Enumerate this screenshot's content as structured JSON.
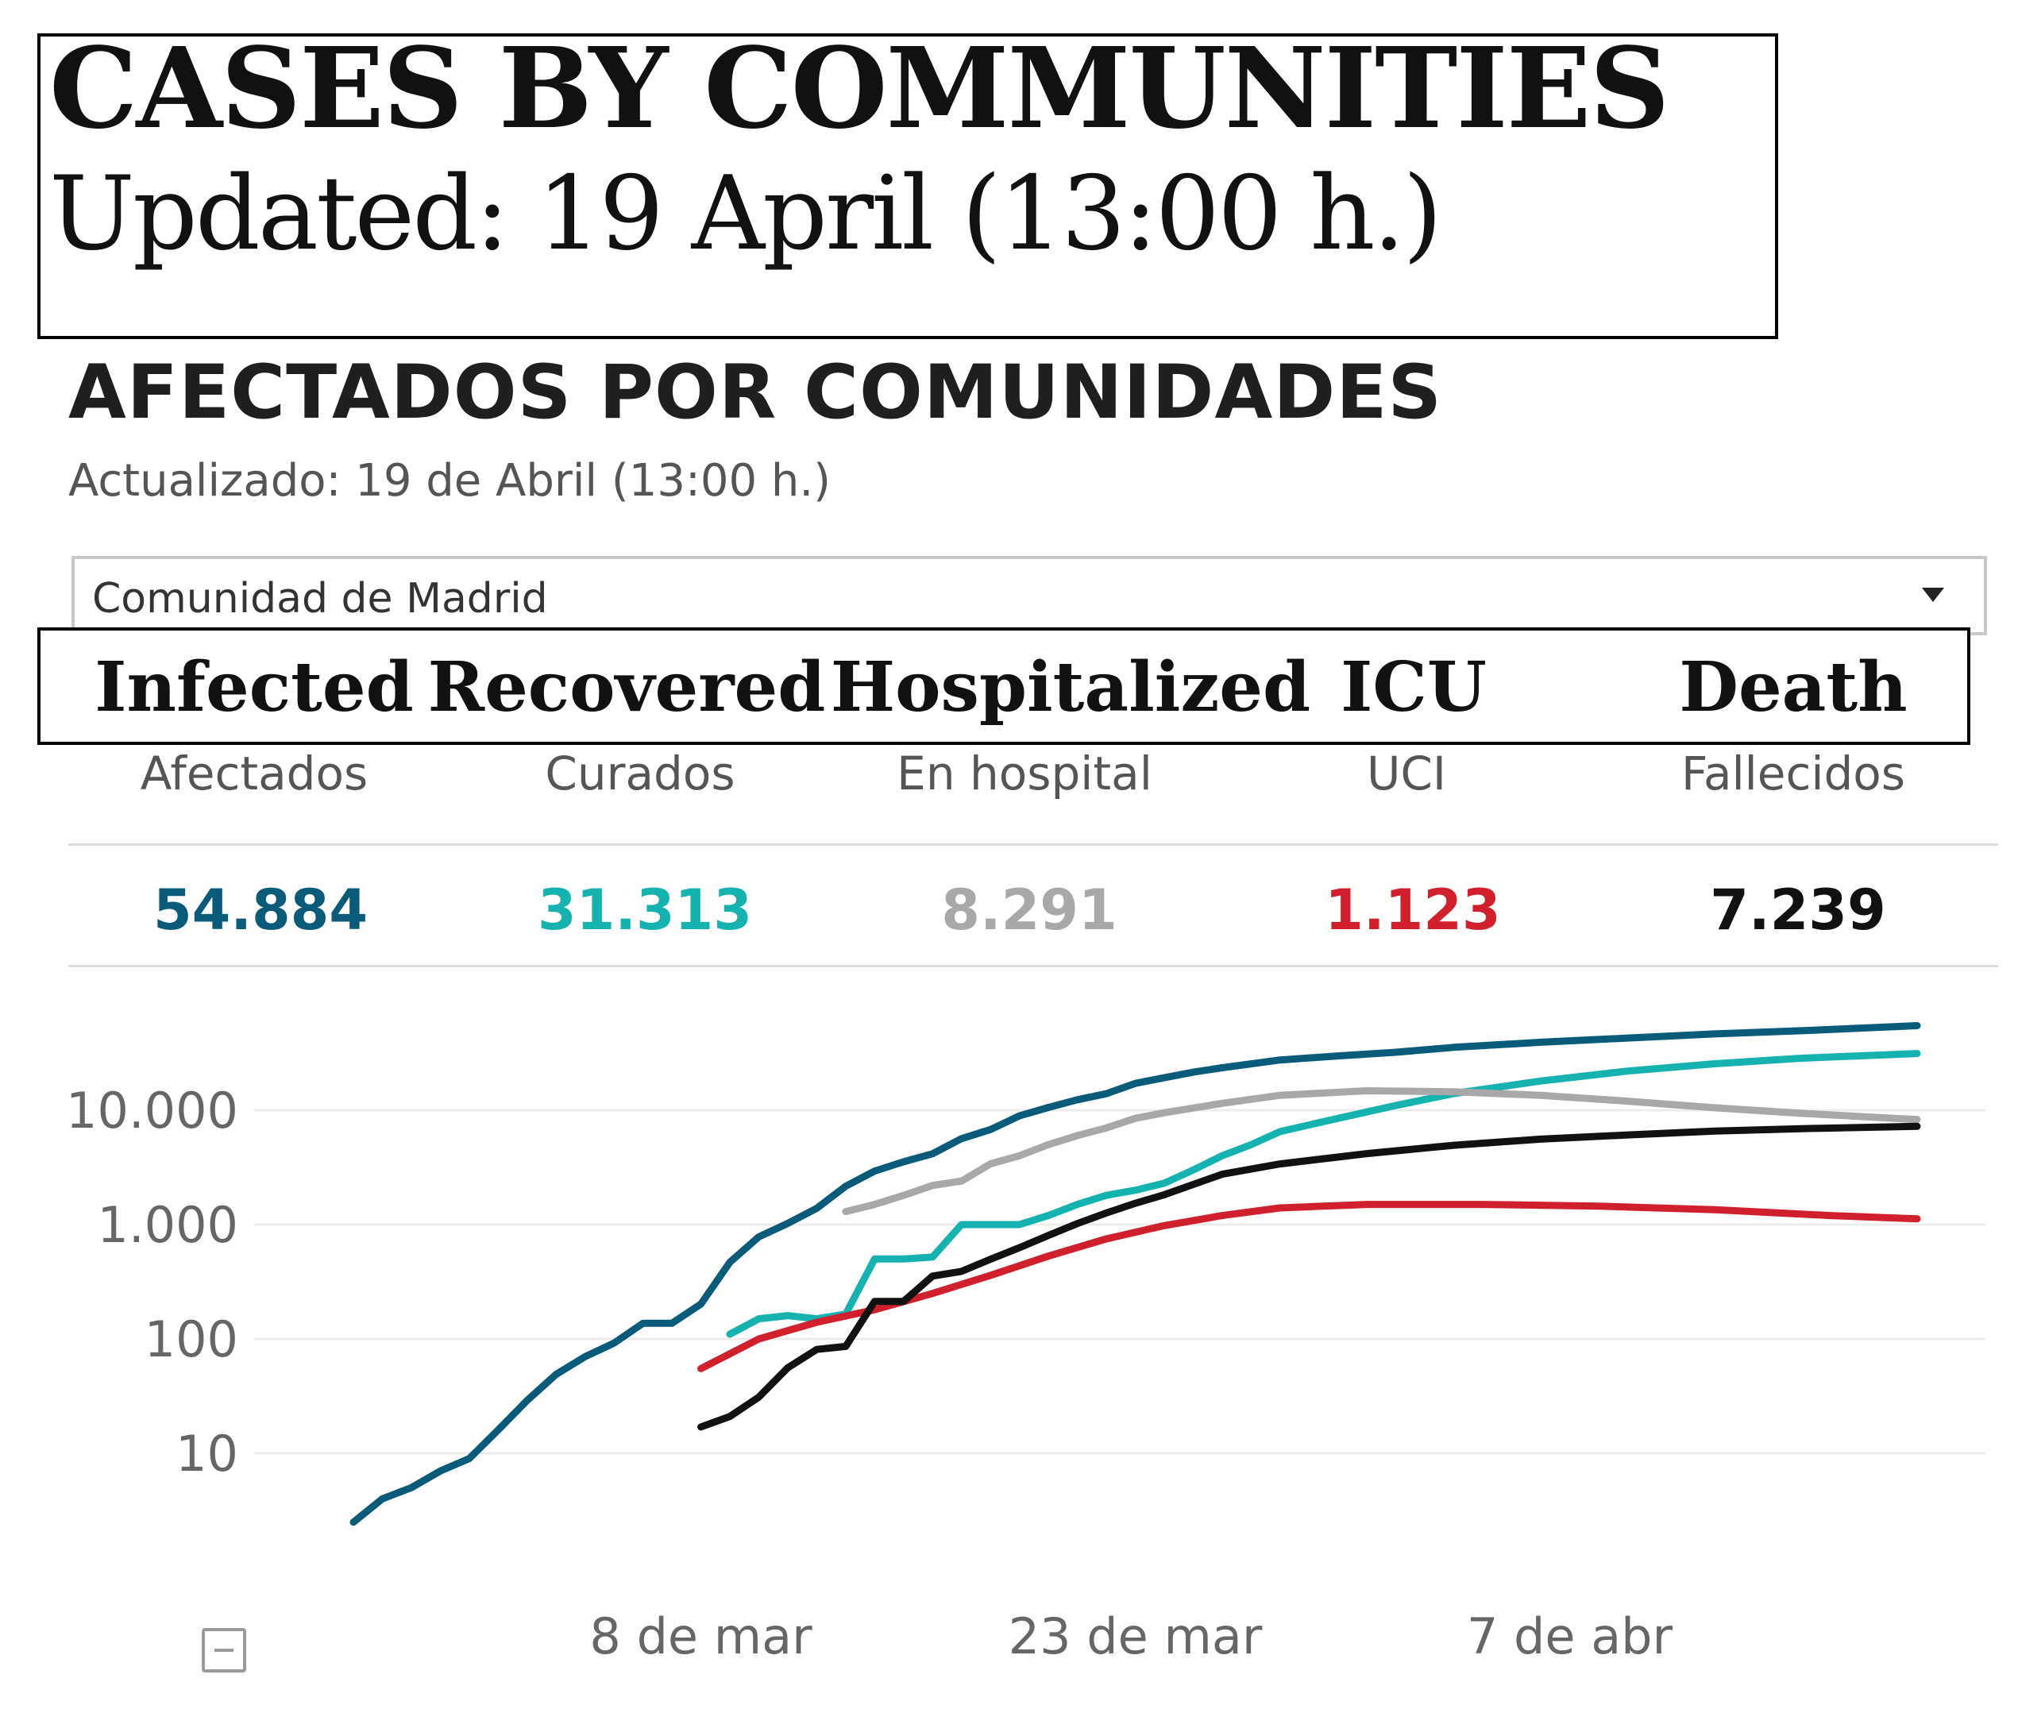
{
  "annotation": {
    "title": "CASES BY COMMUNITIES",
    "updated": "Updated: 19 April (13:00 h.)"
  },
  "header": {
    "title": "AFECTADOS POR COMUNIDADES",
    "updated": "Actualizado: 19 de Abril (13:00 h.)"
  },
  "selector": {
    "value": "Comunidad de Madrid"
  },
  "metrics": [
    {
      "en": "Infected",
      "es": "Afectados",
      "value": "54.884",
      "color": "#0a5a7a"
    },
    {
      "en": "Recovered",
      "es": "Curados",
      "value": "31.313",
      "color": "#16b2b0"
    },
    {
      "en": "Hospitalized",
      "es": "En hospital",
      "value": "8.291",
      "color": "#a8a8a8"
    },
    {
      "en": "ICU",
      "es": "UCI",
      "value": "1.123",
      "color": "#d0202e"
    },
    {
      "en": "Death",
      "es": "Fallecidos",
      "value": "7.239",
      "color": "#111111"
    }
  ],
  "chart_data": {
    "type": "line",
    "yscale": "log",
    "ylim": [
      2,
      70000
    ],
    "xlim": [
      "2020-02-25",
      "2020-04-19"
    ],
    "y_ticks": [
      {
        "value": 10,
        "label": "10"
      },
      {
        "value": 100,
        "label": "100"
      },
      {
        "value": 1000,
        "label": "1.000"
      },
      {
        "value": 10000,
        "label": "10.000"
      }
    ],
    "x_ticks": [
      {
        "date": "2020-03-08",
        "label": "8 de mar"
      },
      {
        "date": "2020-03-23",
        "label": "23 de mar"
      },
      {
        "date": "2020-04-07",
        "label": "7 de abr"
      }
    ],
    "grid": true,
    "legend": "none",
    "series": [
      {
        "color": "#0a5a7a",
        "points": [
          [
            "2020-02-25",
            2.5
          ],
          [
            "2020-02-26",
            4
          ],
          [
            "2020-02-27",
            5
          ],
          [
            "2020-02-28",
            7
          ],
          [
            "2020-02-29",
            9
          ],
          [
            "2020-03-01",
            16
          ],
          [
            "2020-03-02",
            29
          ],
          [
            "2020-03-03",
            49
          ],
          [
            "2020-03-04",
            70
          ],
          [
            "2020-03-05",
            92
          ],
          [
            "2020-03-06",
            137
          ],
          [
            "2020-03-07",
            137
          ],
          [
            "2020-03-08",
            202
          ],
          [
            "2020-03-09",
            469
          ],
          [
            "2020-03-10",
            782
          ],
          [
            "2020-03-11",
            1024
          ],
          [
            "2020-03-12",
            1388
          ],
          [
            "2020-03-13",
            2165
          ],
          [
            "2020-03-14",
            2940
          ],
          [
            "2020-03-15",
            3544
          ],
          [
            "2020-03-16",
            4165
          ],
          [
            "2020-03-17",
            5637
          ],
          [
            "2020-03-18",
            6777
          ],
          [
            "2020-03-19",
            8921
          ],
          [
            "2020-03-20",
            10575
          ],
          [
            "2020-03-21",
            12352
          ],
          [
            "2020-03-22",
            13941
          ],
          [
            "2020-03-23",
            17166
          ],
          [
            "2020-03-24",
            19243
          ],
          [
            "2020-03-25",
            21520
          ],
          [
            "2020-03-26",
            23543
          ],
          [
            "2020-03-28",
            27509
          ],
          [
            "2020-03-30",
            29840
          ],
          [
            "2020-04-01",
            32155
          ],
          [
            "2020-04-03",
            35501
          ],
          [
            "2020-04-06",
            39315
          ],
          [
            "2020-04-09",
            42800
          ],
          [
            "2020-04-12",
            46500
          ],
          [
            "2020-04-15",
            49600
          ],
          [
            "2020-04-19",
            54884
          ]
        ]
      },
      {
        "color": "#16b2b0",
        "points": [
          [
            "2020-03-09",
            110
          ],
          [
            "2020-03-10",
            150
          ],
          [
            "2020-03-11",
            160
          ],
          [
            "2020-03-12",
            150
          ],
          [
            "2020-03-13",
            165
          ],
          [
            "2020-03-14",
            500
          ],
          [
            "2020-03-15",
            500
          ],
          [
            "2020-03-16",
            520
          ],
          [
            "2020-03-17",
            1000
          ],
          [
            "2020-03-18",
            1000
          ],
          [
            "2020-03-19",
            1000
          ],
          [
            "2020-03-20",
            1200
          ],
          [
            "2020-03-21",
            1500
          ],
          [
            "2020-03-22",
            1800
          ],
          [
            "2020-03-23",
            2000
          ],
          [
            "2020-03-24",
            2300
          ],
          [
            "2020-03-25",
            3000
          ],
          [
            "2020-03-26",
            4000
          ],
          [
            "2020-03-27",
            5000
          ],
          [
            "2020-03-28",
            6500
          ],
          [
            "2020-03-30",
            8500
          ],
          [
            "2020-04-01",
            11000
          ],
          [
            "2020-04-03",
            14000
          ],
          [
            "2020-04-06",
            18000
          ],
          [
            "2020-04-09",
            22000
          ],
          [
            "2020-04-12",
            25500
          ],
          [
            "2020-04-15",
            28500
          ],
          [
            "2020-04-19",
            31313
          ]
        ]
      },
      {
        "color": "#a8a8a8",
        "points": [
          [
            "2020-03-13",
            1300
          ],
          [
            "2020-03-14",
            1500
          ],
          [
            "2020-03-15",
            1800
          ],
          [
            "2020-03-16",
            2200
          ],
          [
            "2020-03-17",
            2400
          ],
          [
            "2020-03-18",
            3400
          ],
          [
            "2020-03-19",
            4000
          ],
          [
            "2020-03-20",
            5000
          ],
          [
            "2020-03-21",
            6000
          ],
          [
            "2020-03-22",
            7000
          ],
          [
            "2020-03-23",
            8500
          ],
          [
            "2020-03-24",
            9500
          ],
          [
            "2020-03-26",
            11500
          ],
          [
            "2020-03-28",
            13500
          ],
          [
            "2020-03-31",
            14800
          ],
          [
            "2020-04-03",
            14500
          ],
          [
            "2020-04-06",
            13500
          ],
          [
            "2020-04-09",
            12000
          ],
          [
            "2020-04-12",
            10500
          ],
          [
            "2020-04-15",
            9400
          ],
          [
            "2020-04-19",
            8291
          ]
        ]
      },
      {
        "color": "#d0202e",
        "points": [
          [
            "2020-03-08",
            55
          ],
          [
            "2020-03-10",
            100
          ],
          [
            "2020-03-12",
            140
          ],
          [
            "2020-03-14",
            180
          ],
          [
            "2020-03-16",
            250
          ],
          [
            "2020-03-18",
            360
          ],
          [
            "2020-03-20",
            530
          ],
          [
            "2020-03-22",
            750
          ],
          [
            "2020-03-24",
            980
          ],
          [
            "2020-03-26",
            1200
          ],
          [
            "2020-03-28",
            1400
          ],
          [
            "2020-03-31",
            1500
          ],
          [
            "2020-04-04",
            1500
          ],
          [
            "2020-04-08",
            1450
          ],
          [
            "2020-04-12",
            1350
          ],
          [
            "2020-04-16",
            1200
          ],
          [
            "2020-04-19",
            1123
          ]
        ]
      },
      {
        "color": "#111111",
        "points": [
          [
            "2020-03-08",
            17
          ],
          [
            "2020-03-09",
            21
          ],
          [
            "2020-03-10",
            31
          ],
          [
            "2020-03-11",
            56
          ],
          [
            "2020-03-12",
            81
          ],
          [
            "2020-03-13",
            86
          ],
          [
            "2020-03-14",
            213
          ],
          [
            "2020-03-15",
            213
          ],
          [
            "2020-03-16",
            355
          ],
          [
            "2020-03-17",
            390
          ],
          [
            "2020-03-18",
            498
          ],
          [
            "2020-03-19",
            628
          ],
          [
            "2020-03-20",
            804
          ],
          [
            "2020-03-21",
            1021
          ],
          [
            "2020-03-22",
            1263
          ],
          [
            "2020-03-23",
            1535
          ],
          [
            "2020-03-24",
            1825
          ],
          [
            "2020-03-26",
            2757
          ],
          [
            "2020-03-28",
            3392
          ],
          [
            "2020-03-31",
            4175
          ],
          [
            "2020-04-03",
            4941
          ],
          [
            "2020-04-06",
            5586
          ],
          [
            "2020-04-09",
            6084
          ],
          [
            "2020-04-12",
            6569
          ],
          [
            "2020-04-15",
            6900
          ],
          [
            "2020-04-19",
            7239
          ]
        ]
      }
    ]
  }
}
